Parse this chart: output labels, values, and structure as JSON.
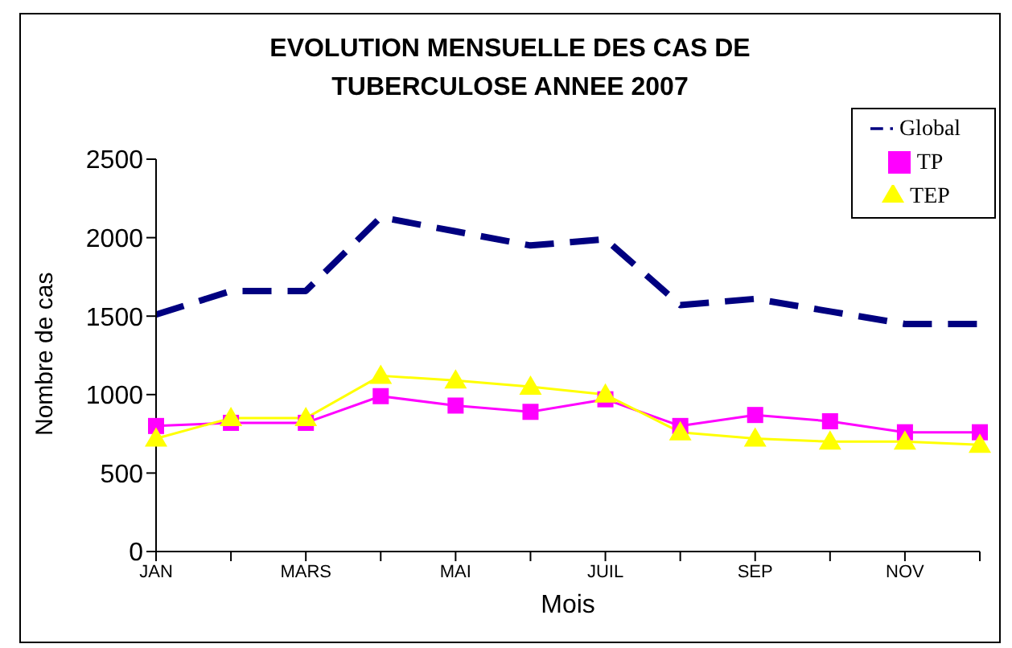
{
  "chart_data": {
    "type": "line",
    "title": "EVOLUTION MENSUELLE DES CAS DE TUBERCULOSE ANNEE 2007",
    "xlabel": "Mois",
    "ylabel": "Nombre de cas",
    "categories": [
      "JAN",
      null,
      "MARS",
      null,
      "MAI",
      null,
      "JUIL",
      null,
      "SEP",
      null,
      "NOV",
      null
    ],
    "series": [
      {
        "name": "Global",
        "color": "#000080",
        "line_style": "dashed",
        "marker": "none",
        "values": [
          1510,
          1660,
          1660,
          2130,
          2040,
          1950,
          1990,
          1570,
          1610,
          1530,
          1450,
          1450
        ]
      },
      {
        "name": "TP",
        "color": "#ff00ff",
        "line_style": "solid",
        "marker": "square",
        "values": [
          800,
          820,
          820,
          990,
          930,
          890,
          970,
          800,
          870,
          830,
          760,
          760
        ]
      },
      {
        "name": "TEP",
        "color": "#ffff00",
        "line_style": "solid",
        "marker": "triangle",
        "values": [
          720,
          850,
          850,
          1120,
          1090,
          1050,
          1000,
          760,
          720,
          700,
          700,
          680
        ]
      }
    ],
    "ylim": [
      0,
      2500
    ],
    "yticks": [
      0,
      500,
      1000,
      1500,
      2000,
      2500
    ],
    "grid": false,
    "legend": "top right"
  }
}
